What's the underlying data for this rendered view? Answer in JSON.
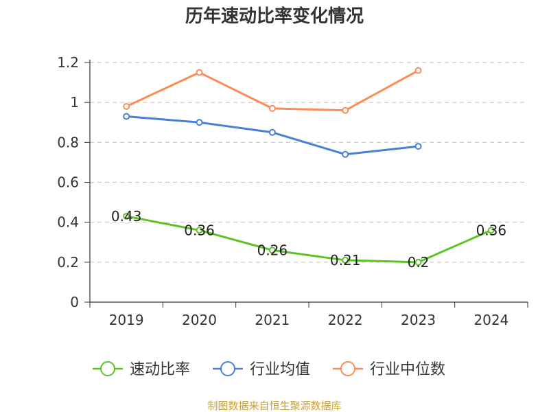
{
  "chart_data": {
    "type": "line",
    "title": "历年速动比率变化情况",
    "categories": [
      "2019",
      "2020",
      "2021",
      "2022",
      "2023",
      "2024"
    ],
    "ylim": [
      0,
      1.2
    ],
    "yticks": [
      "0",
      "0.2",
      "0.4",
      "0.6",
      "0.8",
      "1",
      "1.2"
    ],
    "grid": true,
    "legend_position": "bottom",
    "series": [
      {
        "name": "速动比率",
        "color": "#5ec126",
        "values": [
          0.43,
          0.36,
          0.26,
          0.21,
          0.2,
          0.36
        ],
        "data_labels": [
          "0.43",
          "0.36",
          "0.26",
          "0.21",
          "0.2",
          "0.36"
        ]
      },
      {
        "name": "行业均值",
        "color": "#4a7fd6",
        "values": [
          0.93,
          0.9,
          0.85,
          0.74,
          0.78,
          null
        ]
      },
      {
        "name": "行业中位数",
        "color": "#fb8c54",
        "values": [
          0.98,
          1.15,
          0.97,
          0.96,
          1.16,
          null
        ]
      }
    ]
  },
  "source_text": "制图数据来自恒生聚源数据库",
  "source_color": "#c9a236"
}
